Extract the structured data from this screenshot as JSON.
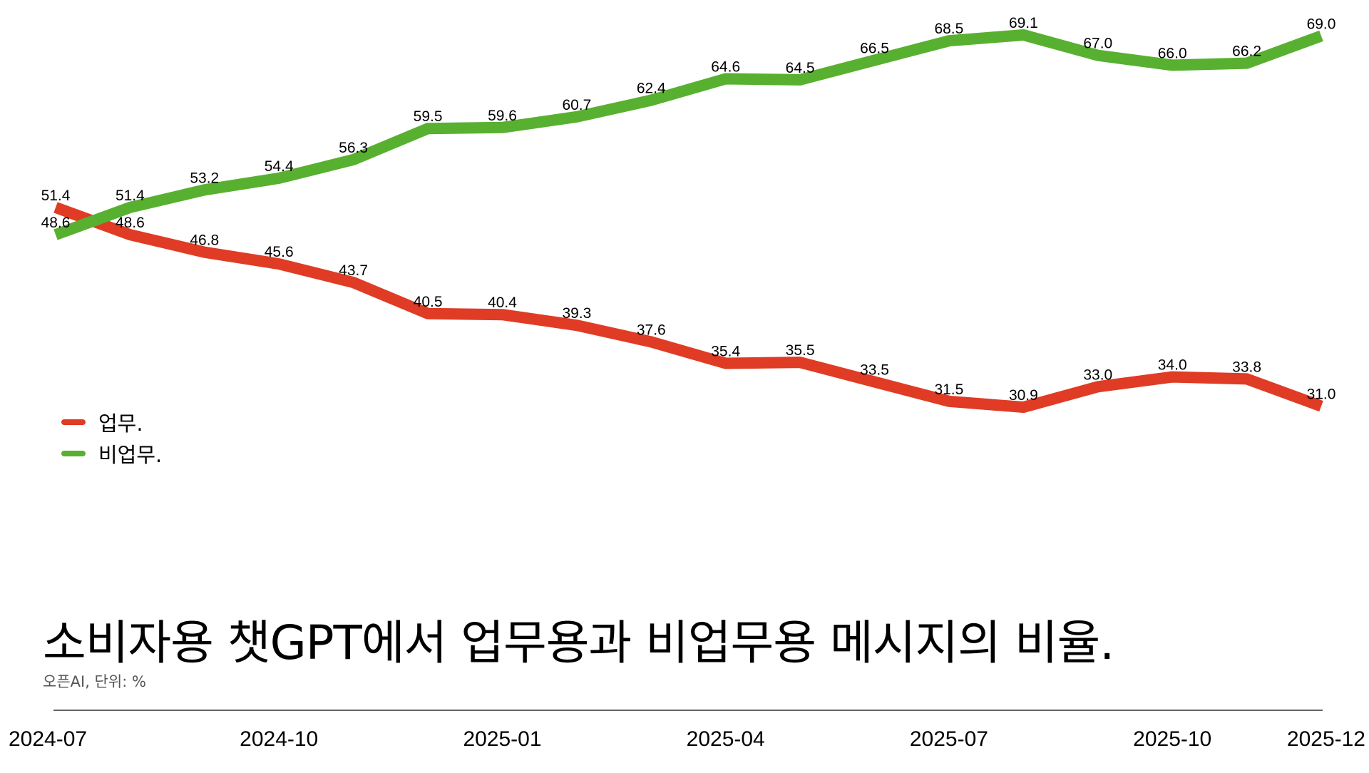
{
  "title": "소비자용 챗GPT에서 업무용과 비업무용 메시지의 비율.",
  "source": "오픈AI, 단위: %",
  "legend": [
    {
      "label": "업무.",
      "color": "#e03b24"
    },
    {
      "label": "비업무.",
      "color": "#58b030"
    }
  ],
  "chart_data": {
    "type": "line",
    "x": [
      "2024-07",
      "2024-08",
      "2024-09",
      "2024-10",
      "2024-11",
      "2024-12",
      "2025-01",
      "2025-02",
      "2025-03",
      "2025-04",
      "2025-05",
      "2025-06",
      "2025-07",
      "2025-08",
      "2025-09",
      "2025-10",
      "2025-11",
      "2025-12"
    ],
    "x_tick_labels": [
      "2024-07",
      "2024-10",
      "2025-01",
      "2025-04",
      "2025-07",
      "2025-10",
      "2025-12"
    ],
    "series": [
      {
        "name": "업무.",
        "color": "#e03b24",
        "values": [
          51.4,
          48.6,
          46.8,
          45.6,
          43.7,
          40.5,
          40.4,
          39.3,
          37.6,
          35.4,
          35.5,
          33.5,
          31.5,
          30.9,
          33.0,
          34.0,
          33.8,
          31.0
        ],
        "labels": [
          "51.4",
          "48.6",
          "46.8",
          "45.6",
          "43.7",
          "40.5",
          "40.4",
          "39.3",
          "37.6",
          "35.4",
          "35.5",
          "33.5",
          "31.5",
          "30.9",
          "33.0",
          "34.0",
          "33.8",
          "31.0"
        ]
      },
      {
        "name": "비업무.",
        "color": "#58b030",
        "values": [
          48.6,
          51.4,
          53.2,
          54.4,
          56.3,
          59.5,
          59.6,
          60.7,
          62.4,
          64.6,
          64.5,
          66.5,
          68.5,
          69.1,
          67.0,
          66.0,
          66.2,
          69.0
        ],
        "labels": [
          "48.6",
          "51.4",
          "53.2",
          "54.4",
          "56.3",
          "59.5",
          "59.6",
          "60.7",
          "62.4",
          "64.6",
          "64.5",
          "66.5",
          "68.5",
          "69.1",
          "67.0",
          "66.0",
          "66.2",
          "69.0"
        ]
      }
    ],
    "ylim": [
      30.9,
      69.1
    ],
    "grid": false,
    "legend_position": "left"
  }
}
